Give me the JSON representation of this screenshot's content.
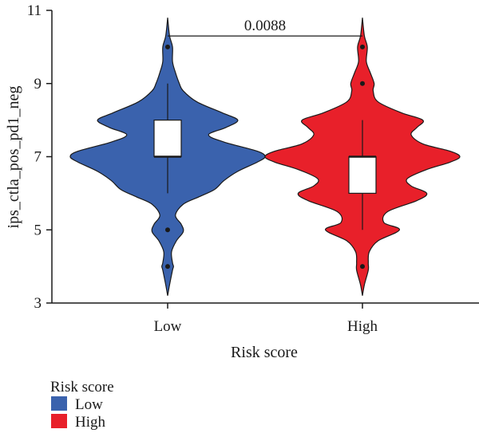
{
  "chart_data": {
    "type": "violin",
    "title": "",
    "xlabel": "Risk score",
    "ylabel": "ips_ctla_pos_pd1_neg",
    "ylim": [
      3,
      11
    ],
    "yticks": [
      "3",
      "5",
      "7",
      "9",
      "11"
    ],
    "categories": [
      "Low",
      "High"
    ],
    "grid": false,
    "series": [
      {
        "name": "Low",
        "color": "#3a62ad",
        "box": {
          "q1": 7,
          "median": 7,
          "q3": 8,
          "whisker_low": 6,
          "whisker_high": 9
        },
        "outliers": [
          10,
          5,
          4
        ],
        "range": [
          3.2,
          10.8
        ],
        "density": [
          [
            3.2,
            0.0
          ],
          [
            3.5,
            0.02
          ],
          [
            3.9,
            0.05
          ],
          [
            4.0,
            0.06
          ],
          [
            4.1,
            0.05
          ],
          [
            4.4,
            0.04
          ],
          [
            4.7,
            0.09
          ],
          [
            4.95,
            0.16
          ],
          [
            5.15,
            0.14
          ],
          [
            5.4,
            0.08
          ],
          [
            5.7,
            0.16
          ],
          [
            5.9,
            0.32
          ],
          [
            6.1,
            0.48
          ],
          [
            6.35,
            0.58
          ],
          [
            6.6,
            0.72
          ],
          [
            6.85,
            0.92
          ],
          [
            7.0,
            1.0
          ],
          [
            7.15,
            0.92
          ],
          [
            7.4,
            0.58
          ],
          [
            7.6,
            0.42
          ],
          [
            7.8,
            0.6
          ],
          [
            8.0,
            0.72
          ],
          [
            8.2,
            0.56
          ],
          [
            8.5,
            0.3
          ],
          [
            8.8,
            0.16
          ],
          [
            9.0,
            0.12
          ],
          [
            9.3,
            0.08
          ],
          [
            9.6,
            0.05
          ],
          [
            10.0,
            0.05
          ],
          [
            10.3,
            0.02
          ],
          [
            10.8,
            0.0
          ]
        ]
      },
      {
        "name": "High",
        "color": "#e8202a",
        "box": {
          "q1": 6,
          "median": 7,
          "q3": 7,
          "whisker_low": 5,
          "whisker_high": 8
        },
        "outliers": [
          10,
          9,
          4
        ],
        "range": [
          3.2,
          10.8
        ],
        "density": [
          [
            3.2,
            0.0
          ],
          [
            3.5,
            0.02
          ],
          [
            3.9,
            0.06
          ],
          [
            4.1,
            0.06
          ],
          [
            4.4,
            0.07
          ],
          [
            4.7,
            0.16
          ],
          [
            5.0,
            0.38
          ],
          [
            5.2,
            0.22
          ],
          [
            5.5,
            0.26
          ],
          [
            5.8,
            0.56
          ],
          [
            6.0,
            0.66
          ],
          [
            6.2,
            0.5
          ],
          [
            6.4,
            0.46
          ],
          [
            6.65,
            0.66
          ],
          [
            6.85,
            0.9
          ],
          [
            7.0,
            1.0
          ],
          [
            7.15,
            0.9
          ],
          [
            7.35,
            0.62
          ],
          [
            7.6,
            0.5
          ],
          [
            7.8,
            0.56
          ],
          [
            8.0,
            0.62
          ],
          [
            8.2,
            0.4
          ],
          [
            8.5,
            0.16
          ],
          [
            8.8,
            0.11
          ],
          [
            9.0,
            0.12
          ],
          [
            9.3,
            0.08
          ],
          [
            9.6,
            0.04
          ],
          [
            10.0,
            0.05
          ],
          [
            10.3,
            0.02
          ],
          [
            10.8,
            0.0
          ]
        ]
      }
    ],
    "comparison": {
      "label": "0.0088",
      "y": 10.3
    },
    "legend": {
      "title": "Risk score",
      "placement": "bottom-left",
      "items": [
        {
          "label": "Low",
          "color": "#3a62ad"
        },
        {
          "label": "High",
          "color": "#e8202a"
        }
      ]
    }
  }
}
